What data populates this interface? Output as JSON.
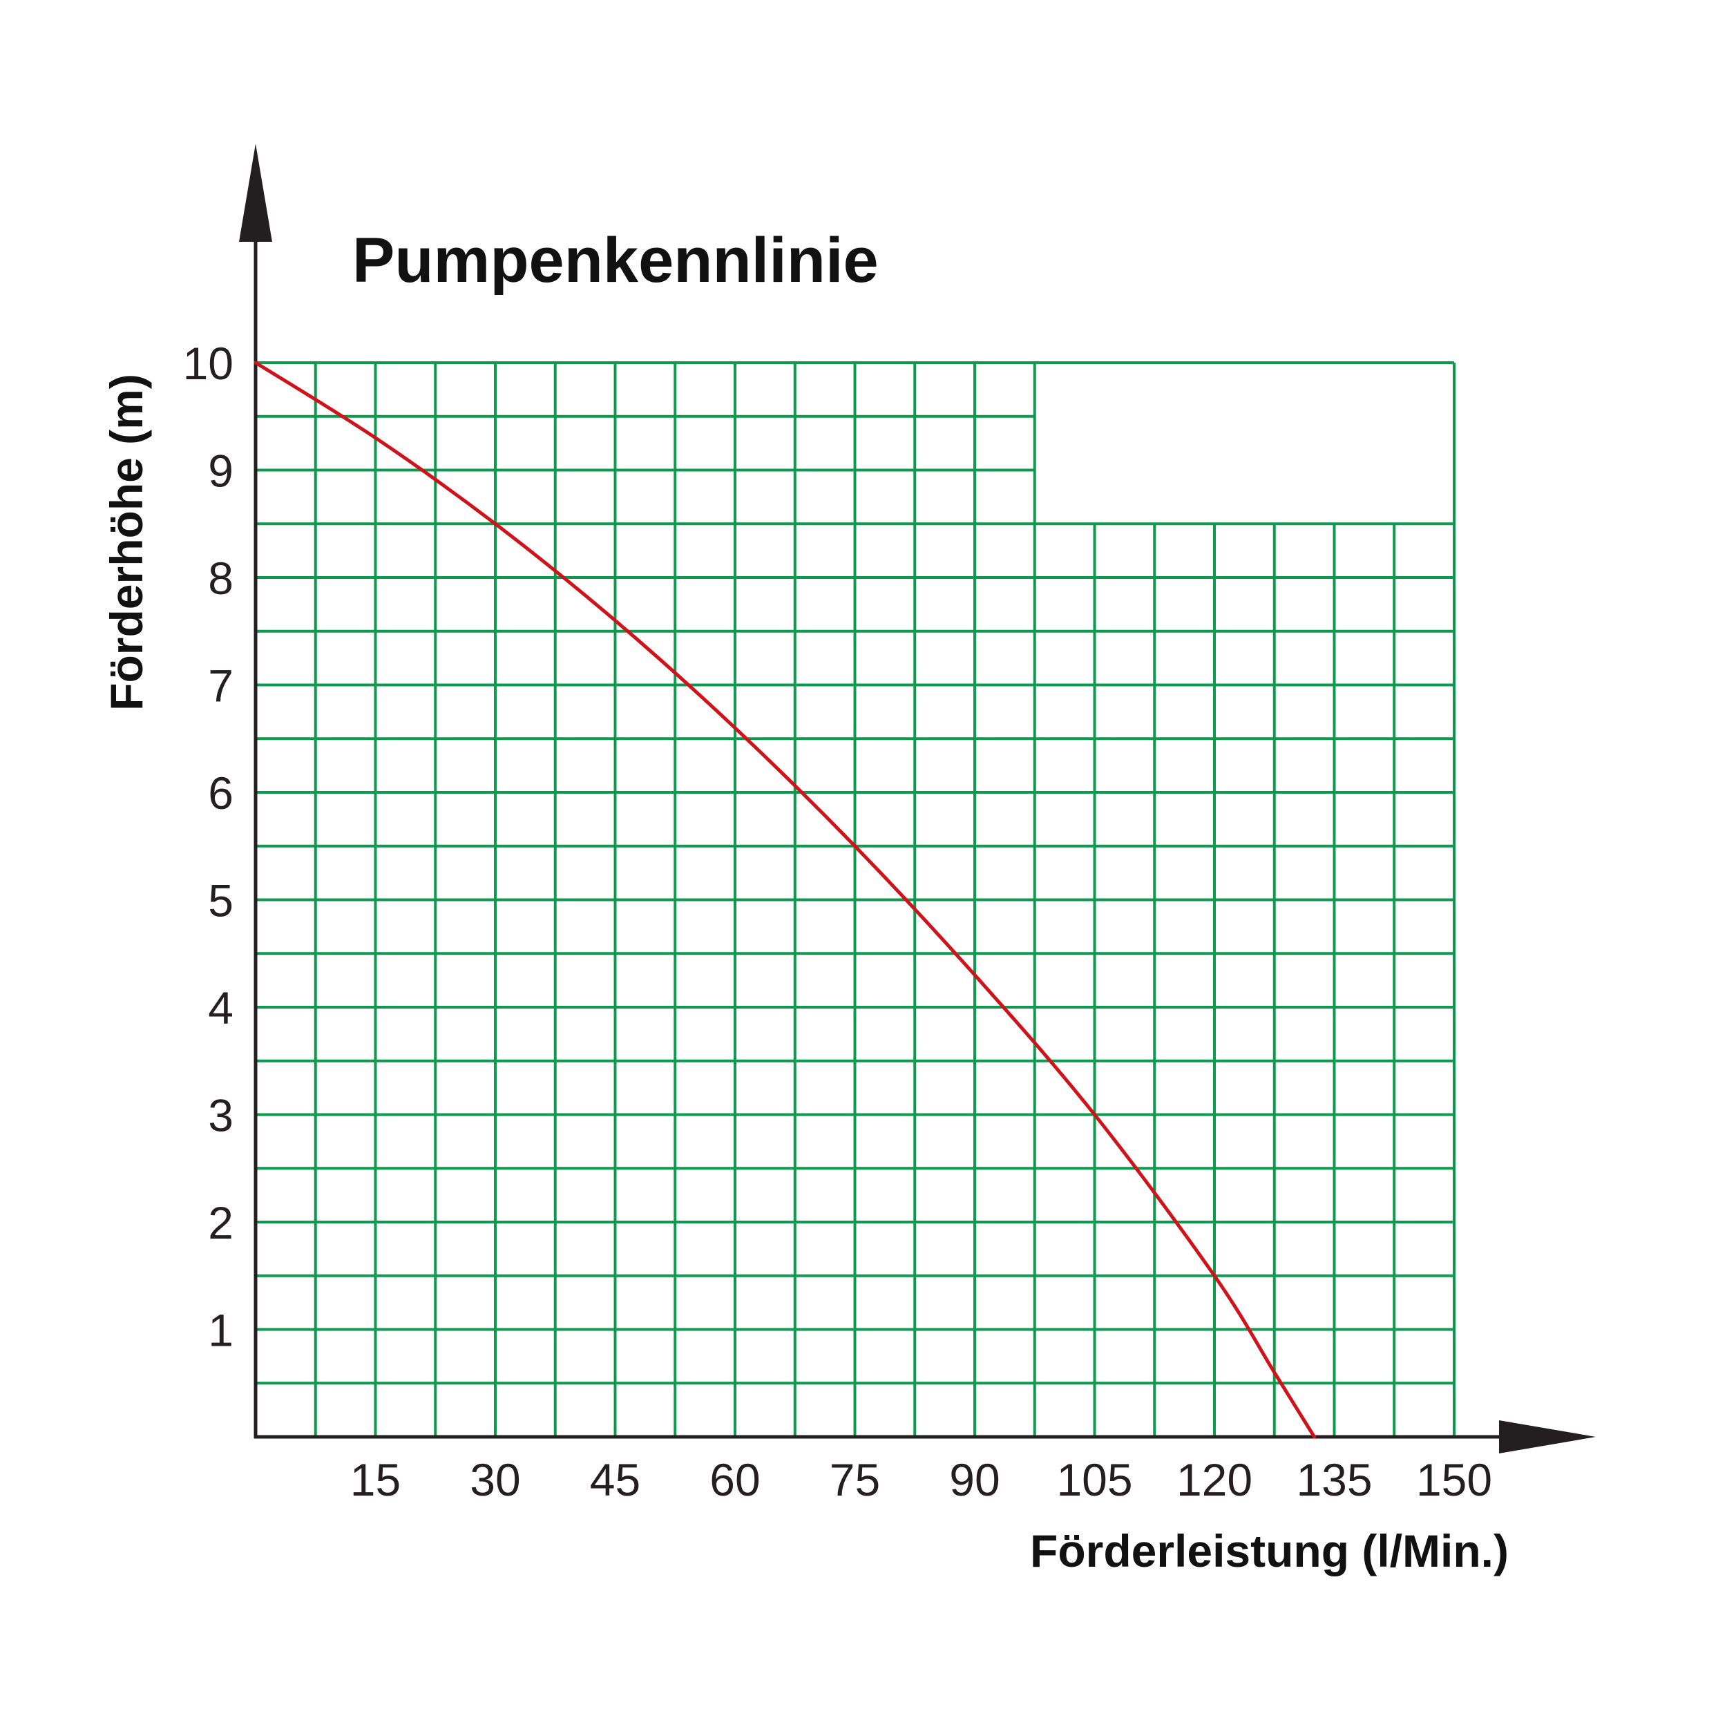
{
  "chart_data": {
    "type": "line",
    "title": "Pumpenkennlinie",
    "xlabel": "Förderleistung (l/Min.)",
    "ylabel": "Förderhöhe (m)",
    "xlim": [
      0,
      150
    ],
    "ylim": [
      0,
      10
    ],
    "x_ticks": [
      "15",
      "30",
      "45",
      "60",
      "75",
      "90",
      "105",
      "120",
      "135",
      "150"
    ],
    "y_ticks": [
      "1",
      "2",
      "3",
      "4",
      "5",
      "6",
      "7",
      "8",
      "9",
      "10"
    ],
    "grid": true,
    "grid_minor_x_step": 7.5,
    "grid_minor_y_step": 0.5,
    "grid_upper_edge": [
      {
        "x": [
          0,
          97.5
        ],
        "y": 10
      },
      {
        "x": [
          97.5,
          150
        ],
        "y": 8.5
      }
    ],
    "extra_grid_border": {
      "x": [
        97.5,
        150
      ],
      "y": 10
    },
    "series": [
      {
        "color": "#d0121b",
        "x": [
          0,
          15,
          30,
          45,
          60,
          75,
          90,
          105,
          120,
          127.5,
          132.5
        ],
        "y": [
          10,
          9.3,
          8.5,
          7.6,
          6.6,
          5.5,
          4.3,
          3.0,
          1.5,
          0.6,
          0
        ]
      }
    ],
    "colors": {
      "grid": "#0d9a4e",
      "axis": "#231f20"
    }
  }
}
